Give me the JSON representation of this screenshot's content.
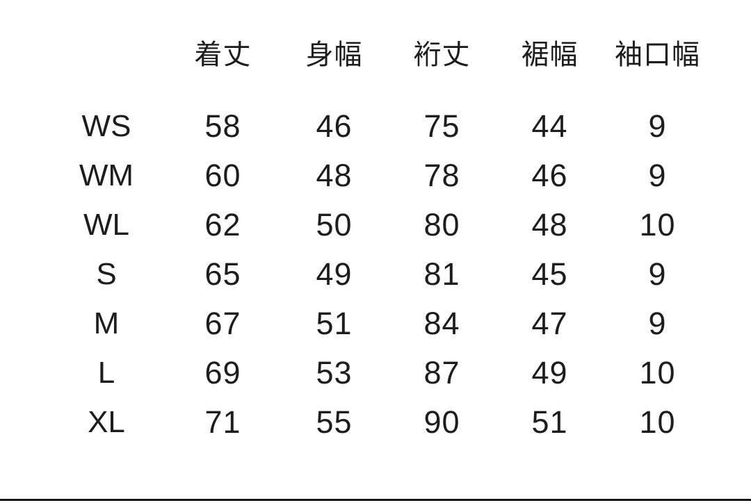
{
  "page": {
    "background": "#ffffff",
    "text_color": "#1d1d1d",
    "bottom_rule_color": "#141414"
  },
  "size_chart": {
    "unit_note": "",
    "columns": [
      "着丈",
      "身幅",
      "裄丈",
      "裾幅",
      "袖口幅"
    ],
    "rows": [
      {
        "size": "WS",
        "values": [
          "58",
          "46",
          "75",
          "44",
          "9"
        ]
      },
      {
        "size": "WM",
        "values": [
          "60",
          "48",
          "78",
          "46",
          "9"
        ]
      },
      {
        "size": "WL",
        "values": [
          "62",
          "50",
          "80",
          "48",
          "10"
        ]
      },
      {
        "size": "S",
        "values": [
          "65",
          "49",
          "81",
          "45",
          "9"
        ]
      },
      {
        "size": "M",
        "values": [
          "67",
          "51",
          "84",
          "47",
          "9"
        ]
      },
      {
        "size": "L",
        "values": [
          "69",
          "53",
          "87",
          "49",
          "10"
        ]
      },
      {
        "size": "XL",
        "values": [
          "71",
          "55",
          "90",
          "51",
          "10"
        ]
      }
    ]
  }
}
